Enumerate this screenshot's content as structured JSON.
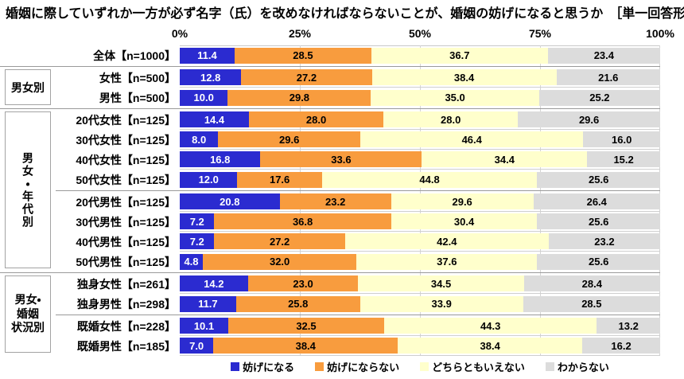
{
  "title": "婚姻に際していずれか一方が必ず名字（氏）を改めなければならないことが、婚姻の妨げになると思うか　［単一回答形式］",
  "legend": [
    {
      "label": "妨げになる",
      "color": "#2b2bd0"
    },
    {
      "label": "妨げにならない",
      "color": "#f89c3e"
    },
    {
      "label": "どちらともいえない",
      "color": "#ffffcc"
    },
    {
      "label": "わからない",
      "color": "#dcdcdc"
    }
  ],
  "chart_data": {
    "type": "bar",
    "stacked": true,
    "orientation": "horizontal",
    "xlim": [
      0,
      100
    ],
    "x_ticks": [
      "0%",
      "25%",
      "50%",
      "75%",
      "100%"
    ],
    "series_names": [
      "妨げになる",
      "妨げにならない",
      "どちらともいえない",
      "わからない"
    ],
    "series_keys": [
      "hindrance",
      "no-hindrance",
      "neither",
      "dont-know"
    ],
    "series_colors": [
      "#2b2bd0",
      "#f89c3e",
      "#ffffcc",
      "#dcdcdc"
    ],
    "groups": [
      {
        "label": "",
        "rows": [
          {
            "label": "全体【n=1000】",
            "values": [
              11.4,
              28.5,
              36.7,
              23.4
            ]
          }
        ]
      },
      {
        "label": "男女別",
        "rows": [
          {
            "label": "女性【n=500】",
            "values": [
              12.8,
              27.2,
              38.4,
              21.6
            ]
          },
          {
            "label": "男性【n=500】",
            "values": [
              10.0,
              29.8,
              35.0,
              25.2
            ]
          }
        ]
      },
      {
        "label": "男女・年代別",
        "rows": [
          {
            "label": "20代女性【n=125】",
            "values": [
              14.4,
              28.0,
              28.0,
              29.6
            ]
          },
          {
            "label": "30代女性【n=125】",
            "values": [
              8.0,
              29.6,
              46.4,
              16.0
            ]
          },
          {
            "label": "40代女性【n=125】",
            "values": [
              16.8,
              33.6,
              34.4,
              15.2
            ]
          },
          {
            "label": "50代女性【n=125】",
            "values": [
              12.0,
              17.6,
              44.8,
              25.6
            ],
            "divider_after": true
          },
          {
            "label": "20代男性【n=125】",
            "values": [
              20.8,
              23.2,
              29.6,
              26.4
            ]
          },
          {
            "label": "30代男性【n=125】",
            "values": [
              7.2,
              36.8,
              30.4,
              25.6
            ]
          },
          {
            "label": "40代男性【n=125】",
            "values": [
              7.2,
              27.2,
              42.4,
              23.2
            ]
          },
          {
            "label": "50代男性【n=125】",
            "values": [
              4.8,
              32.0,
              37.6,
              25.6
            ]
          }
        ]
      },
      {
        "label": "男女・婚姻状況別",
        "label_display": "男女・\n婚姻\n状況別",
        "rows": [
          {
            "label": "独身女性【n=261】",
            "values": [
              14.2,
              23.0,
              34.5,
              28.4
            ]
          },
          {
            "label": "独身男性【n=298】",
            "values": [
              11.7,
              25.8,
              33.9,
              28.5
            ],
            "divider_after": true
          },
          {
            "label": "既婚女性【n=228】",
            "values": [
              10.1,
              32.5,
              44.3,
              13.2
            ]
          },
          {
            "label": "既婚男性【n=185】",
            "values": [
              7.0,
              38.4,
              38.4,
              16.2
            ]
          }
        ]
      }
    ]
  }
}
